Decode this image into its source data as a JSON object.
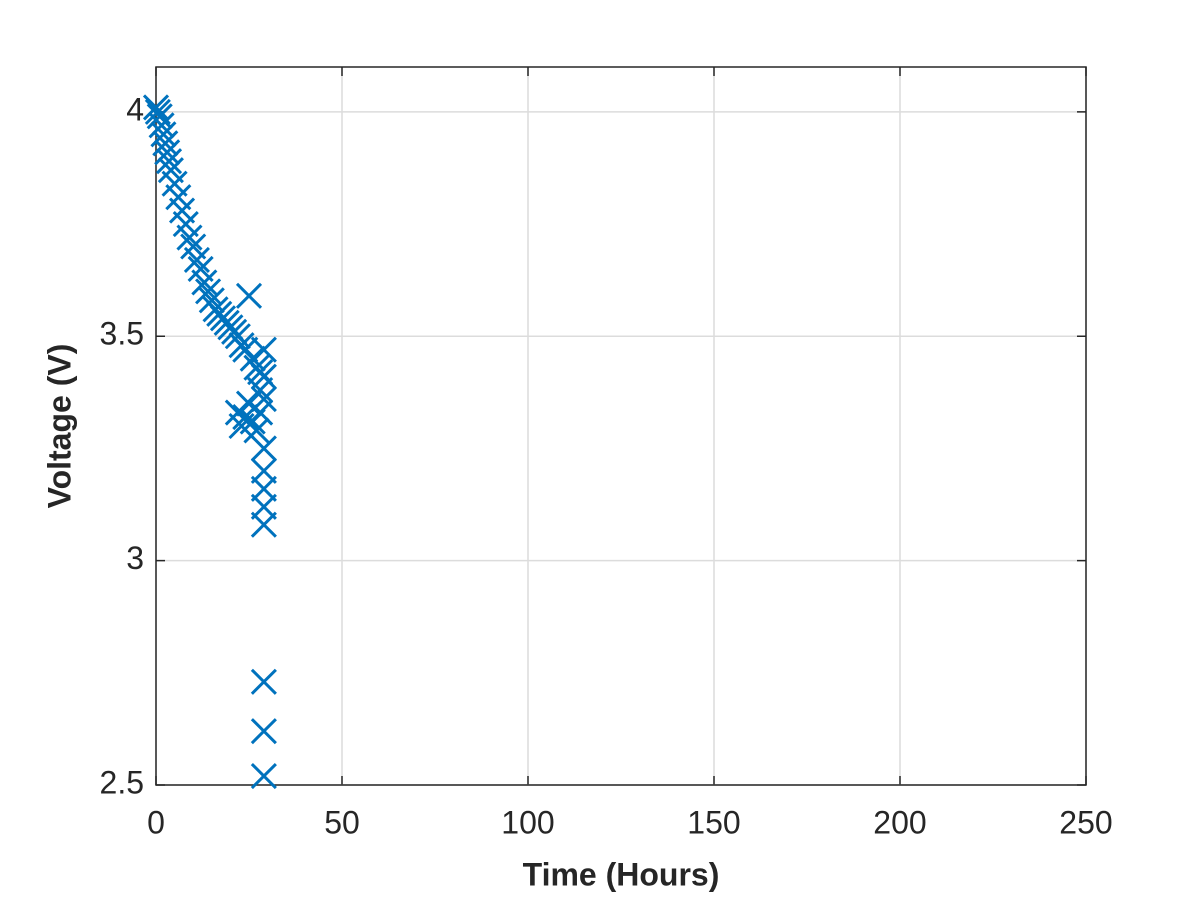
{
  "chart_data": {
    "type": "scatter",
    "xlabel": "Time (Hours)",
    "ylabel": "Voltage (V)",
    "x": [
      0,
      0.5,
      1,
      1.5,
      2,
      2.5,
      3,
      3.5,
      4,
      5,
      6,
      7,
      8,
      9,
      10,
      11,
      12,
      13,
      14,
      15,
      16,
      17,
      18,
      19,
      20,
      21,
      22,
      22,
      23,
      23,
      24,
      24,
      25,
      25,
      26,
      26,
      27,
      27,
      28,
      28,
      28,
      29,
      29,
      29,
      29,
      29,
      29,
      29,
      29,
      29,
      29,
      29
    ],
    "series": [
      {
        "name": "Voltage",
        "color": "#0072bd",
        "marker": "x",
        "values": [
          4.01,
          4.0,
          3.99,
          3.97,
          3.95,
          3.93,
          3.91,
          3.89,
          3.87,
          3.84,
          3.81,
          3.78,
          3.75,
          3.72,
          3.7,
          3.67,
          3.65,
          3.62,
          3.6,
          3.58,
          3.56,
          3.55,
          3.54,
          3.53,
          3.52,
          3.51,
          3.5,
          3.33,
          3.48,
          3.3,
          3.47,
          3.32,
          3.59,
          3.35,
          3.45,
          3.31,
          3.43,
          3.29,
          3.42,
          3.38,
          3.33,
          3.47,
          3.41,
          3.36,
          3.25,
          3.2,
          3.16,
          3.12,
          3.08,
          2.73,
          2.62,
          2.52
        ]
      }
    ],
    "xlim": [
      0,
      250
    ],
    "xticks": [
      0,
      50,
      100,
      150,
      200,
      250
    ],
    "ylim": [
      2.5,
      4.1
    ],
    "yticks": [
      2.5,
      3,
      3.5,
      4
    ],
    "grid": true
  }
}
